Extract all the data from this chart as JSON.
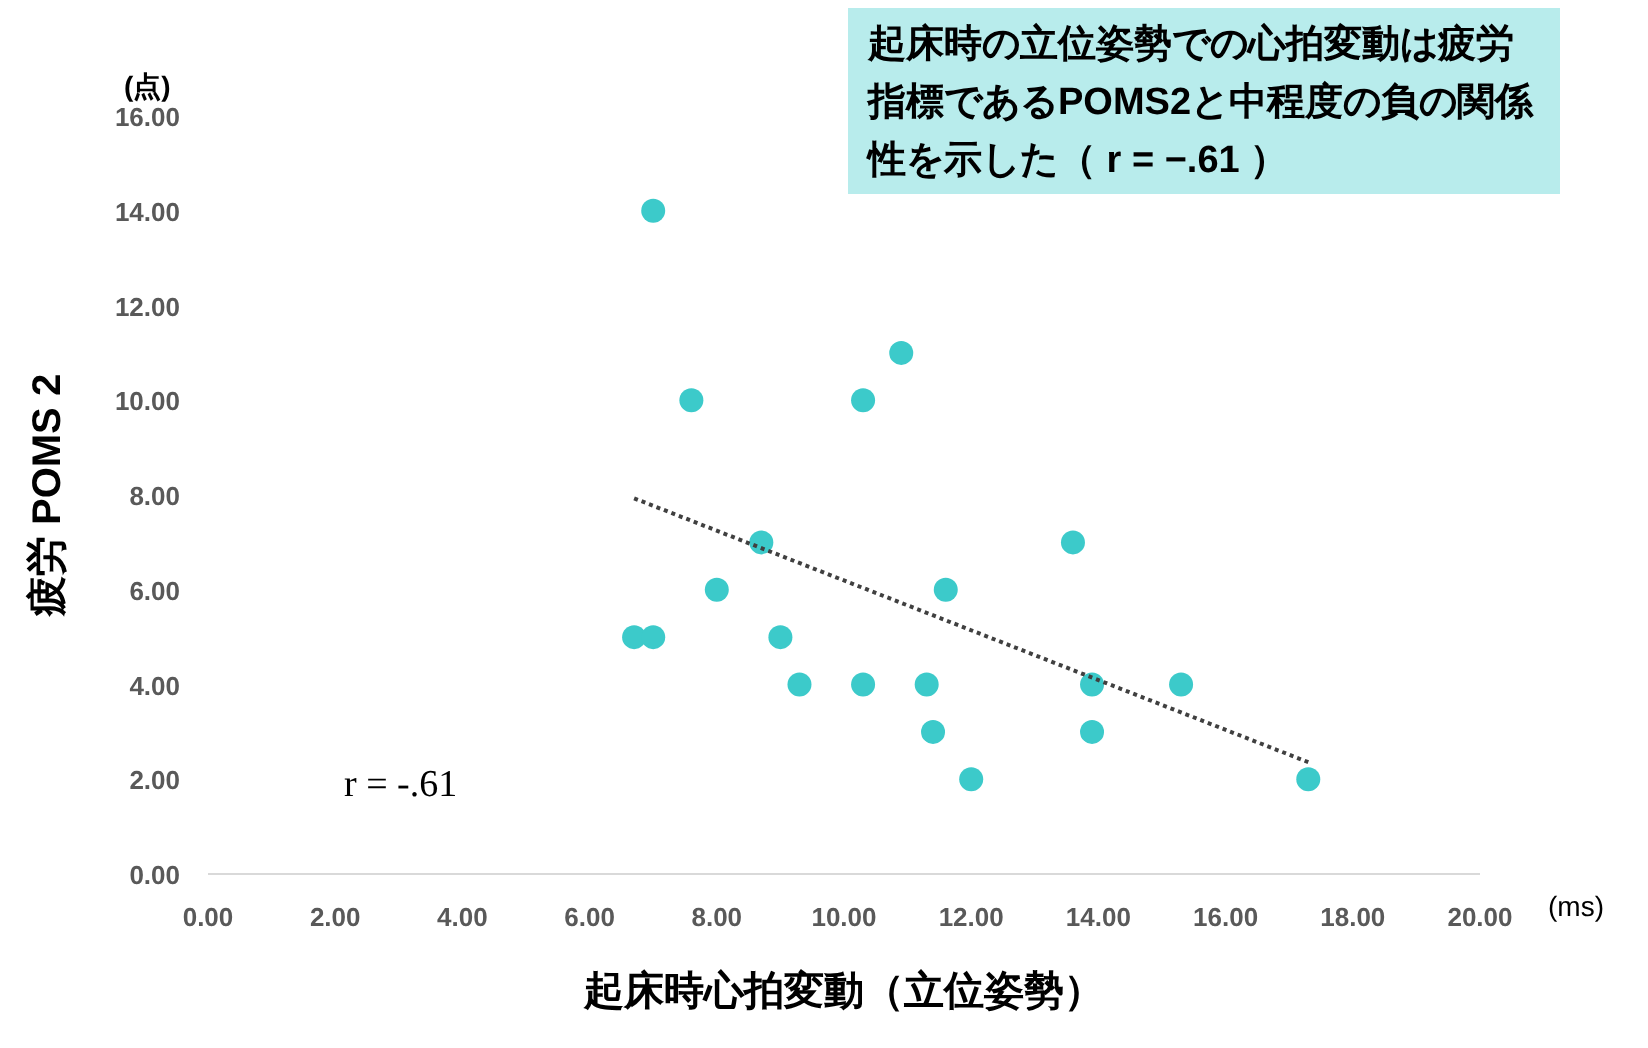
{
  "chart_data": {
    "type": "scatter",
    "title": "起床時の立位姿勢での心拍変動は疲労指標であるPOMS2と中程度の負の関係性を示した（ r = −.61 ）",
    "xlabel": "起床時心拍変動（立位姿勢）",
    "ylabel": "疲労 POMS 2",
    "annotations": [
      "(点)",
      "(ms)",
      "r = -.61"
    ],
    "xlim": [
      0,
      20
    ],
    "ylim": [
      0,
      16
    ],
    "xticks": [
      {
        "value": 0,
        "label": "0.00"
      },
      {
        "value": 2,
        "label": "2.00"
      },
      {
        "value": 4,
        "label": "4.00"
      },
      {
        "value": 6,
        "label": "6.00"
      },
      {
        "value": 8,
        "label": "8.00"
      },
      {
        "value": 10,
        "label": "10.00"
      },
      {
        "value": 12,
        "label": "12.00"
      },
      {
        "value": 14,
        "label": "14.00"
      },
      {
        "value": 16,
        "label": "16.00"
      },
      {
        "value": 18,
        "label": "18.00"
      },
      {
        "value": 20,
        "label": "20.00"
      }
    ],
    "yticks": [
      {
        "value": 0,
        "label": "0.00"
      },
      {
        "value": 2,
        "label": "2.00"
      },
      {
        "value": 4,
        "label": "4.00"
      },
      {
        "value": 6,
        "label": "6.00"
      },
      {
        "value": 8,
        "label": "8.00"
      },
      {
        "value": 10,
        "label": "10.00"
      },
      {
        "value": 12,
        "label": "12.00"
      },
      {
        "value": 14,
        "label": "14.00"
      },
      {
        "value": 16,
        "label": "16.00"
      }
    ],
    "grid": false,
    "marker": "circle",
    "series": [
      {
        "color": "#3ccaca",
        "x": [
          7.0,
          7.6,
          6.7,
          7.0,
          8.0,
          8.7,
          9.0,
          9.3,
          10.3,
          10.3,
          10.9,
          11.3,
          11.4,
          11.6,
          12.0,
          13.6,
          13.9,
          13.9,
          15.3,
          17.3
        ],
        "values": [
          14,
          10,
          5,
          5,
          6,
          7,
          5,
          4,
          10,
          4,
          11,
          4,
          3,
          6,
          2,
          7,
          4,
          3,
          4,
          2
        ]
      },
      {
        "type": "line",
        "color": "#404040",
        "line_style": "dotted",
        "marker": "none",
        "x": [
          6.7,
          17.3
        ],
        "values": [
          7.93,
          2.36
        ]
      }
    ]
  }
}
